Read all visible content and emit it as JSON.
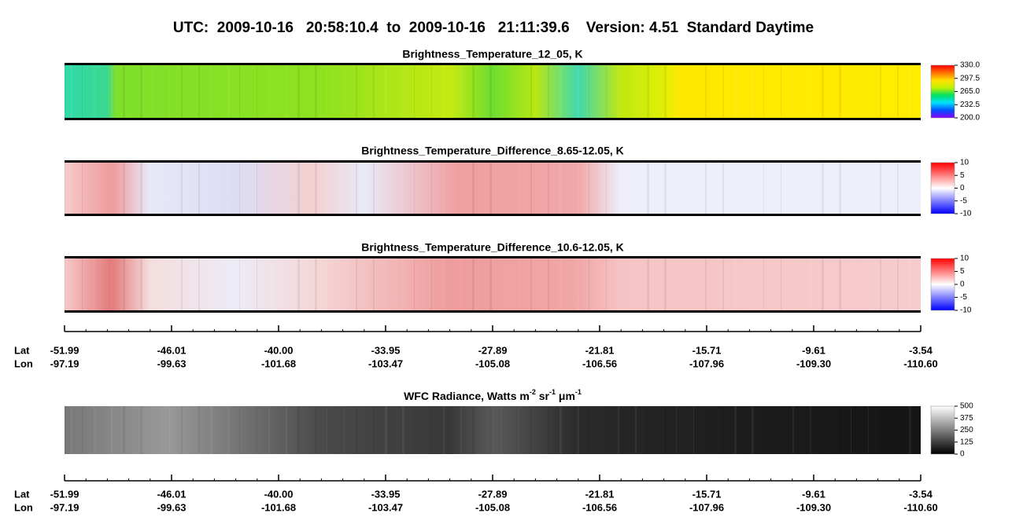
{
  "title": "UTC:  2009-10-16   20:58:10.4  to  2009-10-16   21:11:39.6    Version: 4.51  Standard Daytime",
  "panels": [
    {
      "title": "Brightness_Temperature_12_05, K",
      "clim": [
        200,
        330
      ],
      "cticks": [
        {
          "value": 330,
          "label": "330.0"
        },
        297.5,
        {
          "value": 265,
          "label": "265.0"
        },
        232.5,
        {
          "value": 200,
          "label": "200.0"
        }
      ],
      "colormap": [
        "#8a00ff",
        "#0050ff",
        "#00e0ff",
        "#00e060",
        "#c0f000",
        "#ffe000",
        "#ff7000",
        "#ff0000"
      ]
    },
    {
      "title": "Brightness_Temperature_Difference_8.65-12.05, K",
      "clim": [
        -10,
        10
      ],
      "cticks": [
        10,
        5,
        0,
        -5,
        -10
      ],
      "colormap": [
        "#0000ff",
        "#8080ff",
        "#ffffff",
        "#ff8080",
        "#ff0000"
      ]
    },
    {
      "title": "Brightness_Temperature_Difference_10.6-12.05, K",
      "clim": [
        -10,
        10
      ],
      "cticks": [
        10,
        5,
        0,
        -5,
        -10
      ],
      "colormap": [
        "#0000ff",
        "#8080ff",
        "#ffffff",
        "#ff8080",
        "#ff0000"
      ]
    },
    {
      "title_parts": [
        "WFC Radiance, Watts m",
        "-2",
        " sr",
        "-1",
        " μm",
        "-1"
      ],
      "clim": [
        0,
        500
      ],
      "cticks": [
        500,
        375,
        250,
        125,
        0
      ],
      "colormap": [
        "#000000",
        "#ffffff"
      ]
    }
  ],
  "axis": {
    "lat_label": "Lat",
    "lon_label": "Lon",
    "lat": [
      "-51.99",
      "-46.01",
      "-40.00",
      "-33.95",
      "-27.89",
      "-21.81",
      "-15.71",
      "-9.61",
      "-3.54"
    ],
    "lon": [
      "-97.19",
      "-99.63",
      "-101.68",
      "-103.47",
      "-105.08",
      "-106.56",
      "-107.96",
      "-109.30",
      "-110.60"
    ]
  }
}
